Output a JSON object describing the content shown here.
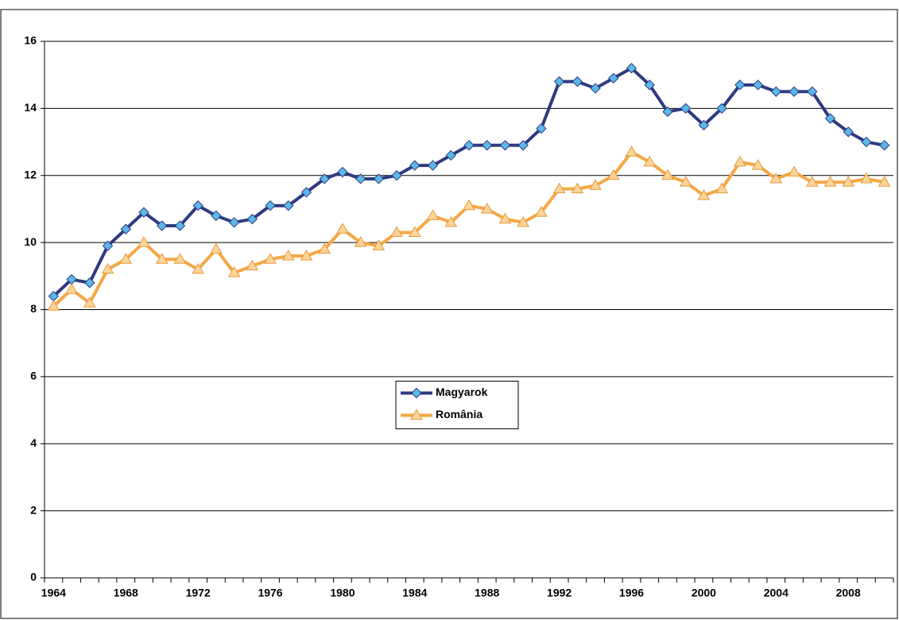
{
  "chart_data": {
    "type": "line",
    "categories": [
      "1964",
      null,
      null,
      null,
      "1968",
      null,
      null,
      null,
      "1972",
      null,
      null,
      null,
      "1976",
      null,
      null,
      null,
      "1980",
      null,
      null,
      null,
      "1984",
      null,
      null,
      null,
      "1988",
      null,
      null,
      null,
      "1992",
      null,
      null,
      null,
      "1996",
      null,
      null,
      null,
      "2000",
      null,
      null,
      null,
      "2004",
      null,
      null,
      null,
      "2008",
      null,
      null
    ],
    "series": [
      {
        "name": "Magyarok",
        "color": "#2e3b80",
        "marker_color": "#5bb8e8",
        "marker": "diamond",
        "values": [
          8.4,
          8.9,
          8.8,
          9.9,
          10.4,
          10.9,
          10.5,
          10.5,
          11.1,
          10.8,
          10.6,
          10.7,
          11.1,
          11.1,
          11.5,
          11.9,
          12.1,
          11.9,
          11.9,
          12.0,
          12.3,
          12.3,
          12.6,
          12.9,
          12.9,
          12.9,
          12.9,
          13.4,
          14.8,
          14.8,
          14.6,
          14.9,
          15.2,
          14.7,
          13.9,
          14.0,
          13.5,
          14.0,
          14.7,
          14.7,
          14.5,
          14.5,
          14.5,
          13.7,
          13.3,
          13.0,
          12.9
        ]
      },
      {
        "name": "România",
        "color": "#f5a745",
        "marker_color": "#fbd49a",
        "marker": "triangle",
        "values": [
          8.1,
          8.6,
          8.2,
          9.2,
          9.5,
          10.0,
          9.5,
          9.5,
          9.2,
          9.8,
          9.1,
          9.3,
          9.5,
          9.6,
          9.6,
          9.8,
          10.4,
          10.0,
          9.9,
          10.3,
          10.3,
          10.8,
          10.6,
          11.1,
          11.0,
          10.7,
          10.6,
          10.9,
          11.6,
          11.6,
          11.7,
          12.0,
          12.7,
          12.4,
          12.0,
          11.8,
          11.4,
          11.6,
          12.4,
          12.3,
          11.9,
          12.1,
          11.8,
          11.8,
          11.8,
          11.9,
          11.8
        ]
      }
    ],
    "ylim": [
      0,
      16
    ],
    "yticks": [
      0,
      2,
      4,
      6,
      8,
      10,
      12,
      14,
      16
    ],
    "grid": true,
    "legend": "center"
  }
}
